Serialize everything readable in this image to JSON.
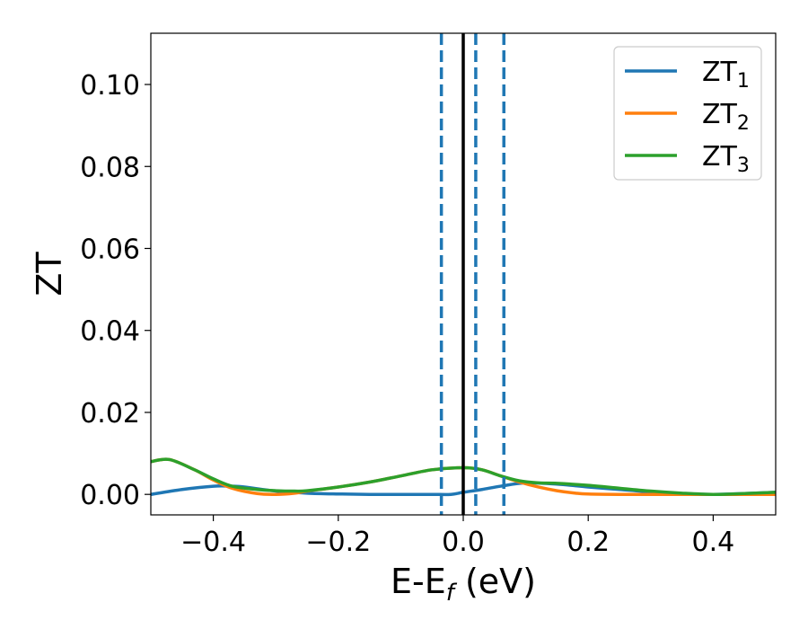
{
  "chart_data": {
    "type": "line",
    "xlabel_main": "E-E",
    "xlabel_sub": "f",
    "xlabel_unit": " (eV)",
    "ylabel": "ZT",
    "xlim": [
      -0.5,
      0.5
    ],
    "ylim": [
      -0.005,
      0.1125
    ],
    "xticks": [
      -0.4,
      -0.2,
      0.0,
      0.2,
      0.4
    ],
    "xtick_labels": [
      "−0.4",
      "−0.2",
      "0.0",
      "0.2",
      "0.4"
    ],
    "yticks": [
      0.0,
      0.02,
      0.04,
      0.06,
      0.08,
      0.1
    ],
    "ytick_labels": [
      "0.00",
      "0.02",
      "0.04",
      "0.06",
      "0.08",
      "0.10"
    ],
    "grid": false,
    "legend_position": "top-right",
    "vertical_lines": [
      {
        "x": 0.0,
        "style": "solid",
        "color": "#000000"
      },
      {
        "x": -0.035,
        "style": "dashed",
        "color": "#1f77b4"
      },
      {
        "x": 0.02,
        "style": "dashed",
        "color": "#1f77b4"
      },
      {
        "x": 0.065,
        "style": "dashed",
        "color": "#1f77b4"
      }
    ],
    "series": [
      {
        "name": "ZT",
        "sub": "1",
        "color": "#1f77b4",
        "x": [
          -0.5,
          -0.45,
          -0.4,
          -0.37,
          -0.35,
          -0.3,
          -0.25,
          -0.2,
          -0.15,
          -0.1,
          -0.05,
          -0.02,
          0.0,
          0.03,
          0.06,
          0.1,
          0.15,
          0.2,
          0.25,
          0.3,
          0.35,
          0.4,
          0.45,
          0.5
        ],
        "y": [
          0.0,
          0.0012,
          0.002,
          0.002,
          0.0018,
          0.0008,
          0.0003,
          0.0001,
          0.0,
          0.0,
          0.0,
          0.0,
          0.0005,
          0.0012,
          0.002,
          0.0028,
          0.0025,
          0.0018,
          0.0012,
          0.0006,
          0.0002,
          0.0,
          0.0002,
          0.0005
        ]
      },
      {
        "name": "ZT",
        "sub": "2",
        "color": "#ff7f0e",
        "x": [
          -0.5,
          -0.47,
          -0.43,
          -0.4,
          -0.37,
          -0.33,
          -0.3,
          -0.27,
          -0.25,
          -0.2,
          -0.15,
          -0.1,
          -0.05,
          0.0,
          0.03,
          0.06,
          0.09,
          0.12,
          0.15,
          0.18,
          0.2,
          0.25,
          0.3,
          0.35,
          0.4,
          0.45,
          0.5
        ],
        "y": [
          0.008,
          0.0085,
          0.006,
          0.0035,
          0.0015,
          0.0002,
          0.0,
          0.0003,
          0.0008,
          0.0018,
          0.003,
          0.0045,
          0.006,
          0.0065,
          0.006,
          0.0045,
          0.003,
          0.0018,
          0.0009,
          0.0003,
          0.0001,
          0.0,
          0.0,
          0.0,
          0.0,
          0.0,
          0.0
        ]
      },
      {
        "name": "ZT",
        "sub": "3",
        "color": "#2ca02c",
        "x": [
          -0.5,
          -0.47,
          -0.43,
          -0.4,
          -0.37,
          -0.33,
          -0.3,
          -0.27,
          -0.25,
          -0.2,
          -0.15,
          -0.1,
          -0.05,
          0.0,
          0.03,
          0.06,
          0.09,
          0.12,
          0.15,
          0.2,
          0.25,
          0.3,
          0.35,
          0.4,
          0.45,
          0.5
        ],
        "y": [
          0.008,
          0.0085,
          0.006,
          0.0038,
          0.002,
          0.0012,
          0.0009,
          0.0008,
          0.0009,
          0.0018,
          0.003,
          0.0045,
          0.006,
          0.0065,
          0.006,
          0.0045,
          0.0033,
          0.0028,
          0.0027,
          0.0022,
          0.0015,
          0.0008,
          0.0003,
          0.0,
          0.0002,
          0.0005
        ]
      }
    ]
  }
}
